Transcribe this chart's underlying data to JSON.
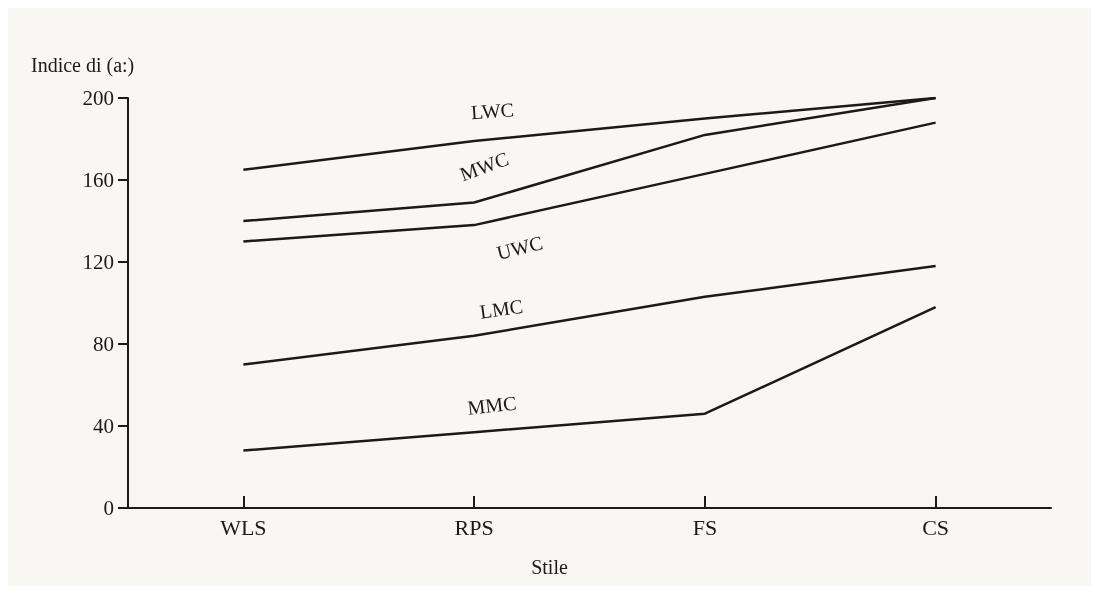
{
  "chart_data": {
    "type": "line",
    "ylabel": "Indice di (a:)",
    "xlabel": "Stile",
    "categories": [
      "WLS",
      "RPS",
      "FS",
      "CS"
    ],
    "series": [
      {
        "name": "LWC",
        "color": "#1a1a1a",
        "values": [
          165,
          179,
          190,
          200
        ]
      },
      {
        "name": "MWC",
        "color": "#1a1a1a",
        "values": [
          140,
          149,
          182,
          200
        ]
      },
      {
        "name": "UWC",
        "color": "#1a1a1a",
        "values": [
          130,
          138,
          163,
          188
        ]
      },
      {
        "name": "LMC",
        "color": "#1a1a1a",
        "values": [
          70,
          84,
          103,
          118
        ]
      },
      {
        "name": "MMC",
        "color": "#1a1a1a",
        "values": [
          28,
          37,
          46,
          98
        ]
      }
    ],
    "ylim": [
      0,
      200
    ],
    "yticks": [
      0,
      40,
      80,
      120,
      160,
      200
    ],
    "grid": false,
    "legend": false,
    "marker": "none",
    "line_style": "solid"
  }
}
